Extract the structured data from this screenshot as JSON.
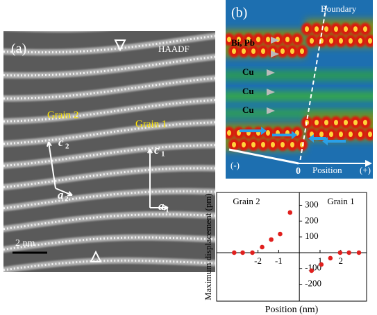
{
  "panel_a": {
    "label": "(a)",
    "mode": "HAADF",
    "grain2": "Grain 2",
    "grain1": "Grain 1",
    "vectors": [
      {
        "name": "c",
        "sub": "2"
      },
      {
        "name": "a",
        "sub": "2"
      },
      {
        "name": "c",
        "sub": "1"
      },
      {
        "name": "a",
        "sub": "1"
      }
    ],
    "scale_bar": "2 nm"
  },
  "panel_b": {
    "label": "(b)",
    "boundary": "Boundary",
    "bi_pb": "Bi, Pb",
    "cu": [
      "Cu",
      "Cu",
      "Cu"
    ],
    "minus": "(-)",
    "zero": "0",
    "position": "Position",
    "plus": "(+)"
  },
  "chart_data": {
    "type": "scatter",
    "xlabel": "Position (nm)",
    "ylabel": "Maximum displacement (pm)",
    "annotations": [
      "Grain 2",
      "Grain 1"
    ],
    "color": "#e0201e",
    "x": [
      -3.15,
      -2.74,
      -2.27,
      -1.8,
      -1.36,
      -0.93,
      -0.45,
      0.59,
      1.06,
      1.5,
      1.97,
      2.4,
      2.88
    ],
    "values": [
      0,
      0,
      0,
      35,
      83,
      118,
      254,
      -114,
      -75,
      -35,
      0,
      0,
      0
    ],
    "xlim": [
      -4,
      3.25
    ],
    "ylim": [
      -307,
      381
    ],
    "xticks": [
      -2,
      -1,
      1,
      2
    ],
    "yticks": [
      -200,
      -100,
      100,
      200,
      300
    ]
  }
}
